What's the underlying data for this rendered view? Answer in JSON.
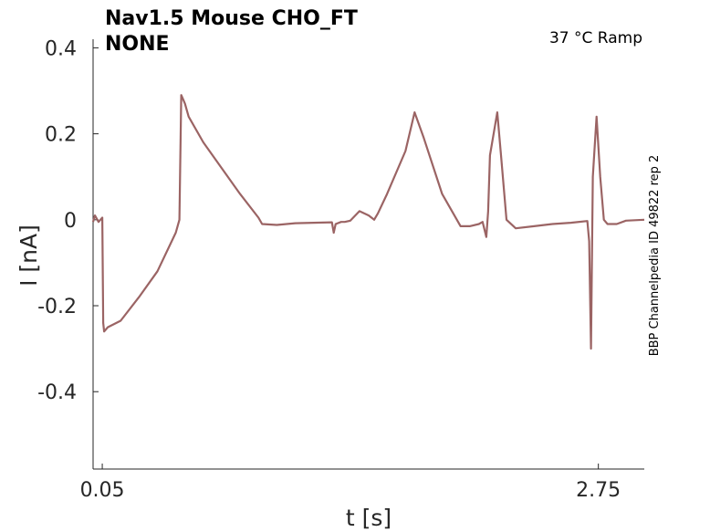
{
  "chart_data": {
    "type": "line",
    "title_line1": "Nav1.5  Mouse  CHO_FT",
    "title_line2": "NONE",
    "annotation": "37 °C  Ramp",
    "side_label": "BBP Channelpedia ID 49822 rep 2",
    "xlabel": "t [s]",
    "ylabel": "I [nA]",
    "xlim": [
      0.0,
      3.0
    ],
    "ylim": [
      -0.58,
      0.42
    ],
    "x_ticks": [
      0.05,
      2.75
    ],
    "x_tick_labels": [
      "0.05",
      "2.75"
    ],
    "y_ticks": [
      0.4,
      0.2,
      0,
      -0.2,
      -0.4
    ],
    "y_tick_labels": [
      "0.4",
      "0.2",
      "0",
      "-0.2",
      "-0.4"
    ],
    "grid": false,
    "line_color": "#9b6464",
    "series": [
      {
        "x": [
          0.0,
          0.01,
          0.03,
          0.05,
          0.055,
          0.06,
          0.08,
          0.15,
          0.25,
          0.35,
          0.45,
          0.47,
          0.48,
          0.49,
          0.5,
          0.52,
          0.6,
          0.7,
          0.8,
          0.9,
          0.92,
          1.0,
          1.1,
          1.2,
          1.3,
          1.31,
          1.32,
          1.35,
          1.37,
          1.4,
          1.45,
          1.5,
          1.53,
          1.55,
          1.6,
          1.7,
          1.75,
          1.8,
          1.9,
          2.0,
          2.05,
          2.1,
          2.12,
          2.14,
          2.15,
          2.16,
          2.2,
          2.22,
          2.25,
          2.3,
          2.4,
          2.5,
          2.6,
          2.69,
          2.7,
          2.71,
          2.72,
          2.74,
          2.76,
          2.78,
          2.8,
          2.85,
          2.9,
          3.0
        ],
        "y": [
          -0.005,
          0.01,
          -0.005,
          0.005,
          -0.24,
          -0.26,
          -0.25,
          -0.235,
          -0.18,
          -0.12,
          -0.03,
          0.0,
          0.29,
          0.28,
          0.27,
          0.24,
          0.18,
          0.12,
          0.06,
          0.005,
          -0.01,
          -0.012,
          -0.008,
          -0.007,
          -0.006,
          -0.03,
          -0.01,
          -0.005,
          -0.005,
          -0.002,
          0.02,
          0.01,
          0.0,
          0.015,
          0.06,
          0.16,
          0.25,
          0.19,
          0.06,
          -0.015,
          -0.015,
          -0.01,
          -0.005,
          -0.04,
          0.02,
          0.15,
          0.25,
          0.15,
          0.0,
          -0.02,
          -0.015,
          -0.01,
          -0.007,
          -0.003,
          -0.05,
          -0.3,
          0.1,
          0.24,
          0.1,
          0.0,
          -0.01,
          -0.01,
          -0.002,
          0.0
        ]
      }
    ]
  }
}
